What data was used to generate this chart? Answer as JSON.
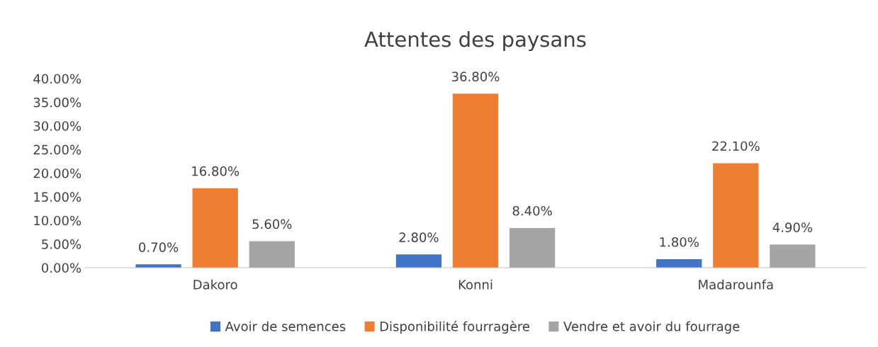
{
  "chart_data": {
    "type": "bar",
    "title": "Attentes des paysans",
    "categories": [
      "Dakoro",
      "Konni",
      "Madarounfa"
    ],
    "series": [
      {
        "name": "Avoir de semences",
        "color": "#4472c4",
        "values": [
          0.7,
          2.8,
          1.8
        ],
        "value_labels": [
          "0.70%",
          "2.80%",
          "1.80%"
        ]
      },
      {
        "name": "Disponibilité fourragère",
        "color": "#ed7d31",
        "values": [
          16.8,
          36.8,
          22.1
        ],
        "value_labels": [
          "16.80%",
          "36.80%",
          "22.10%"
        ]
      },
      {
        "name": "Vendre et avoir du fourrage",
        "color": "#a5a5a5",
        "values": [
          5.6,
          8.4,
          4.9
        ],
        "value_labels": [
          "5.60%",
          "8.40%",
          "4.90%"
        ]
      }
    ],
    "ylim": [
      0,
      40
    ],
    "yticks": [
      {
        "value": 0,
        "label": "0.00%"
      },
      {
        "value": 5,
        "label": "5.00%"
      },
      {
        "value": 10,
        "label": "10.00%"
      },
      {
        "value": 15,
        "label": "15.00%"
      },
      {
        "value": 20,
        "label": "20.00%"
      },
      {
        "value": 25,
        "label": "25.00%"
      },
      {
        "value": 30,
        "label": "30.00%"
      },
      {
        "value": 35,
        "label": "35.00%"
      },
      {
        "value": 40,
        "label": "40.00%"
      }
    ],
    "grid": false,
    "legend": "bottom"
  }
}
